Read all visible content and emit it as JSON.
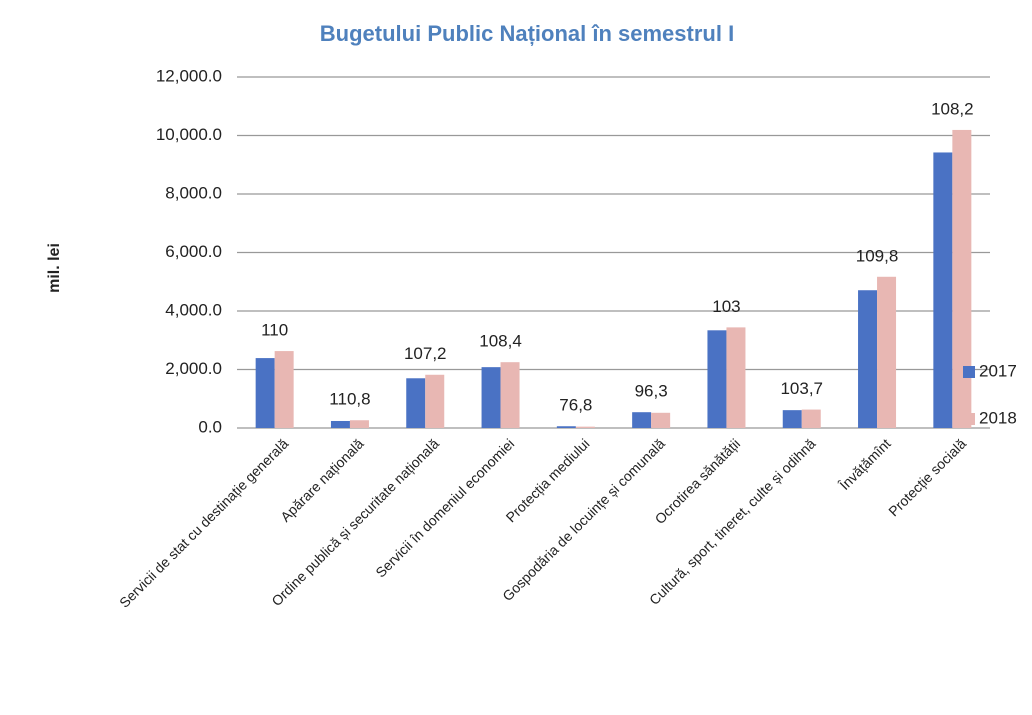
{
  "chart_data": {
    "type": "bar",
    "title": "Bugetului Public Național în semestrul I",
    "y_label": "mil. lei",
    "categories": [
      "Servicii de stat cu destinație generală",
      "Apărare națională",
      "Ordine publică și securitate națională",
      "Servicii în domeniul economiei",
      "Protecția mediului",
      "Gospodăria de locuințe și comunală",
      "Ocrotirea sănătății",
      "Cultură, sport, tineret, culte și odihnă",
      "Învățămînt",
      "Protecție socială"
    ],
    "series": [
      {
        "name": "2017",
        "color": "#4a72c4",
        "values": [
          2390,
          240,
          1700,
          2080,
          60,
          540,
          3340,
          610,
          4710,
          9420
        ]
      },
      {
        "name": "2018",
        "color": "#e8b7b3",
        "values": [
          2630,
          265,
          1820,
          2250,
          46,
          520,
          3440,
          630,
          5170,
          10190
        ]
      }
    ],
    "annotations": [
      "110",
      "110,8",
      "107,2",
      "108,4",
      "76,8",
      "96,3",
      "103",
      "103,7",
      "109,8",
      "108,2"
    ],
    "ylim": [
      0,
      12000
    ],
    "yticks": [
      {
        "value": 0,
        "label": "0.0"
      },
      {
        "value": 2000,
        "label": "2,000.0"
      },
      {
        "value": 4000,
        "label": "4,000.0"
      },
      {
        "value": 6000,
        "label": "6,000.0"
      },
      {
        "value": 8000,
        "label": "8,000.0"
      },
      {
        "value": 10000,
        "label": "10,000.0"
      },
      {
        "value": 12000,
        "label": "12,000.0"
      }
    ],
    "grid": true,
    "legend": "right"
  }
}
